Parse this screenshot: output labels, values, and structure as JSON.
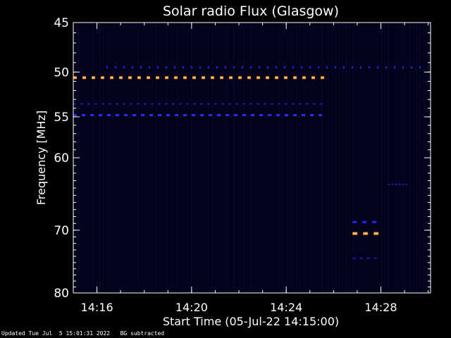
{
  "chart_data": {
    "type": "heatmap",
    "title": "Solar radio Flux (Glasgow)",
    "xlabel": "Start Time (05-Jul-22 14:15:00)",
    "ylabel": "Frequency [MHz]",
    "xlim_minutes_after_1415": [
      0,
      15.1
    ],
    "ylim_mhz": [
      45,
      80
    ],
    "y_axis_reversed": true,
    "y_scale": "log",
    "x_ticks": [
      {
        "label": "14:16",
        "minute": 1
      },
      {
        "label": "14:20",
        "minute": 5
      },
      {
        "label": "14:24",
        "minute": 9
      },
      {
        "label": "14:28",
        "minute": 13
      }
    ],
    "y_ticks": [
      {
        "label": "45",
        "value": 45
      },
      {
        "label": "50",
        "value": 50
      },
      {
        "label": "55",
        "value": 55
      },
      {
        "label": "60",
        "value": 60
      },
      {
        "label": "70",
        "value": 70
      },
      {
        "label": "80",
        "value": 80
      }
    ],
    "bands": [
      {
        "freq": 50.6,
        "t_start": 0,
        "t_end": 10.7,
        "level": "high",
        "color": "#ff8c1a",
        "dash": 5,
        "gap": 8
      },
      {
        "freq": 49.5,
        "t_start": 1.4,
        "t_end": 15.0,
        "level": "medium",
        "color": "#2222ff",
        "dash": 2,
        "gap": 10
      },
      {
        "freq": 53.5,
        "t_start": 0,
        "t_end": 10.7,
        "level": "low",
        "color": "#1a1aaa",
        "dash": 4,
        "gap": 6
      },
      {
        "freq": 54.8,
        "t_start": 0,
        "t_end": 10.7,
        "level": "medium",
        "color": "#2a2aff",
        "dash": 5,
        "gap": 7
      },
      {
        "freq": 63.5,
        "t_start": 13.3,
        "t_end": 14.2,
        "level": "low",
        "color": "#1a1aaa",
        "dash": 3,
        "gap": 2
      },
      {
        "freq": 68.8,
        "t_start": 11.8,
        "t_end": 13.0,
        "level": "medium",
        "color": "#2222ff",
        "dash": 6,
        "gap": 8
      },
      {
        "freq": 70.5,
        "t_start": 11.8,
        "t_end": 13.0,
        "level": "high",
        "color": "#ff8c1a",
        "dash": 7,
        "gap": 8
      },
      {
        "freq": 74.3,
        "t_start": 11.8,
        "t_end": 13.0,
        "level": "low",
        "color": "#1a1aaa",
        "dash": 5,
        "gap": 5
      }
    ],
    "background_color": "#02021a",
    "grid": false
  },
  "footer": {
    "updated": "Updated Tue Jul  5 15:01:31 2022",
    "note": "BG subtracted"
  }
}
